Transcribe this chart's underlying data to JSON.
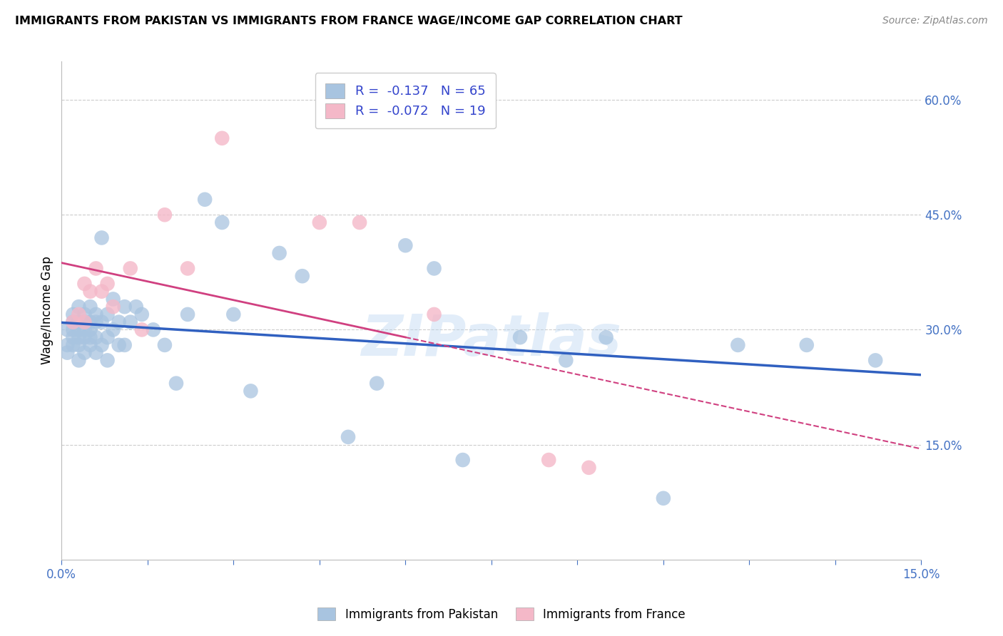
{
  "title": "IMMIGRANTS FROM PAKISTAN VS IMMIGRANTS FROM FRANCE WAGE/INCOME GAP CORRELATION CHART",
  "source": "Source: ZipAtlas.com",
  "ylabel": "Wage/Income Gap",
  "xlim": [
    0.0,
    0.15
  ],
  "ylim": [
    0.0,
    0.65
  ],
  "xtick_positions": [
    0.0,
    0.015,
    0.03,
    0.045,
    0.06,
    0.075,
    0.09,
    0.105,
    0.12,
    0.135,
    0.15
  ],
  "xtick_labels_show": {
    "0.0": "0.0%",
    "0.15": "15.0%"
  },
  "yticks_right": [
    0.15,
    0.3,
    0.45,
    0.6
  ],
  "ytick_right_labels": [
    "15.0%",
    "30.0%",
    "45.0%",
    "60.0%"
  ],
  "pakistan_color": "#a8c4e0",
  "france_color": "#f4b8c8",
  "pakistan_R": -0.137,
  "pakistan_N": 65,
  "france_R": -0.072,
  "france_N": 19,
  "pakistan_line_color": "#3060c0",
  "france_line_color": "#d04080",
  "grid_color": "#cccccc",
  "axis_color": "#4472c4",
  "watermark": "ZIPatlas",
  "pakistan_x": [
    0.001,
    0.001,
    0.001,
    0.002,
    0.002,
    0.002,
    0.002,
    0.002,
    0.003,
    0.003,
    0.003,
    0.003,
    0.003,
    0.003,
    0.004,
    0.004,
    0.004,
    0.004,
    0.004,
    0.005,
    0.005,
    0.005,
    0.005,
    0.005,
    0.006,
    0.006,
    0.006,
    0.006,
    0.007,
    0.007,
    0.007,
    0.008,
    0.008,
    0.008,
    0.009,
    0.009,
    0.01,
    0.01,
    0.011,
    0.011,
    0.012,
    0.013,
    0.014,
    0.016,
    0.018,
    0.02,
    0.022,
    0.025,
    0.028,
    0.03,
    0.033,
    0.038,
    0.042,
    0.05,
    0.055,
    0.06,
    0.065,
    0.07,
    0.08,
    0.088,
    0.095,
    0.105,
    0.118,
    0.13,
    0.142
  ],
  "pakistan_y": [
    0.28,
    0.3,
    0.27,
    0.29,
    0.3,
    0.31,
    0.28,
    0.32,
    0.26,
    0.28,
    0.3,
    0.31,
    0.29,
    0.33,
    0.27,
    0.29,
    0.31,
    0.3,
    0.32,
    0.28,
    0.29,
    0.31,
    0.33,
    0.3,
    0.27,
    0.29,
    0.32,
    0.31,
    0.28,
    0.31,
    0.42,
    0.26,
    0.29,
    0.32,
    0.3,
    0.34,
    0.28,
    0.31,
    0.28,
    0.33,
    0.31,
    0.33,
    0.32,
    0.3,
    0.28,
    0.23,
    0.32,
    0.47,
    0.44,
    0.32,
    0.22,
    0.4,
    0.37,
    0.16,
    0.23,
    0.41,
    0.38,
    0.13,
    0.29,
    0.26,
    0.29,
    0.08,
    0.28,
    0.28,
    0.26
  ],
  "france_x": [
    0.002,
    0.003,
    0.004,
    0.004,
    0.005,
    0.006,
    0.007,
    0.008,
    0.009,
    0.012,
    0.014,
    0.018,
    0.022,
    0.028,
    0.045,
    0.052,
    0.065,
    0.085,
    0.092
  ],
  "france_y": [
    0.31,
    0.32,
    0.31,
    0.36,
    0.35,
    0.38,
    0.35,
    0.36,
    0.33,
    0.38,
    0.3,
    0.45,
    0.38,
    0.55,
    0.44,
    0.44,
    0.32,
    0.13,
    0.12
  ]
}
